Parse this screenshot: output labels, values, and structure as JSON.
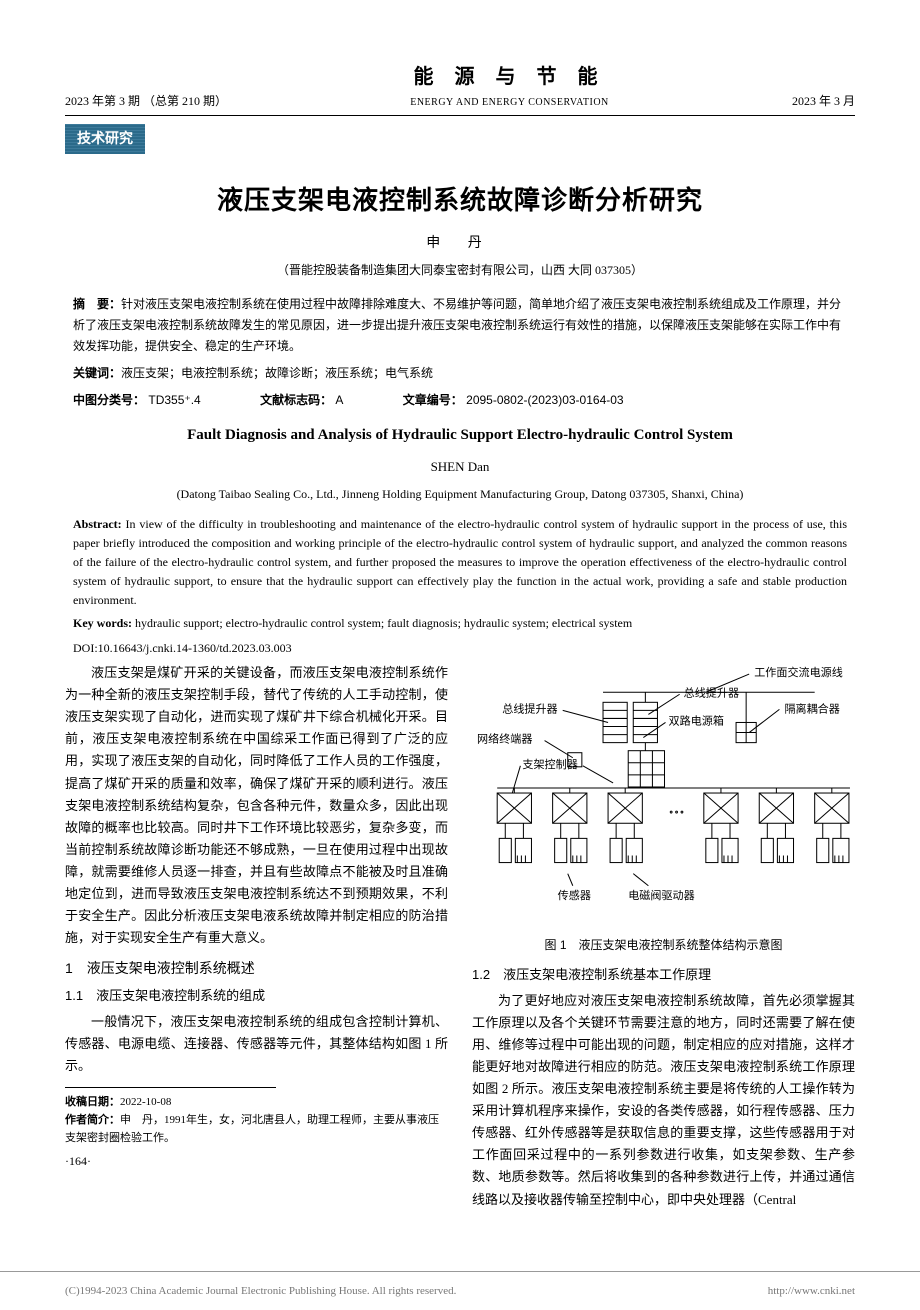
{
  "header": {
    "left": "2023 年第 3 期  （总第 210 期）",
    "right": "2023 年 3 月",
    "center_cn": "能 源 与 节 能",
    "center_en": "ENERGY AND ENERGY CONSERVATION"
  },
  "category": "技术研究",
  "title_cn": "液压支架电液控制系统故障诊断分析研究",
  "author_cn": "申  丹",
  "affiliation_cn": "（晋能控股装备制造集团大同泰宝密封有限公司，山西  大同  037305）",
  "abstract_cn_label": "摘　要：",
  "abstract_cn": "针对液压支架电液控制系统在使用过程中故障排除难度大、不易维护等问题，简单地介绍了液压支架电液控制系统组成及工作原理，并分析了液压支架电液控制系统故障发生的常见原因，进一步提出提升液压支架电液控制系统运行有效性的措施，以保障液压支架能够在实际工作中有效发挥功能，提供安全、稳定的生产环境。",
  "keywords_label": "关键词：",
  "keywords_cn": "液压支架；电液控制系统；故障诊断；液压系统；电气系统",
  "class_no_label": "中图分类号：",
  "class_no": "TD355⁺.4",
  "doc_code_label": "文献标志码：",
  "doc_code": "A",
  "article_no_label": "文章编号：",
  "article_no": "2095-0802-(2023)03-0164-03",
  "title_en": "Fault Diagnosis and Analysis of Hydraulic Support Electro-hydraulic Control System",
  "author_en": "SHEN Dan",
  "affiliation_en": "(Datong Taibao Sealing Co., Ltd., Jinneng Holding Equipment Manufacturing Group, Datong 037305, Shanxi, China)",
  "abstract_en_label": "Abstract:",
  "abstract_en": " In view of the difficulty in troubleshooting and maintenance of the electro-hydraulic control system of hydraulic support in the process of use, this paper briefly introduced the composition and working principle of the electro-hydraulic control system of hydraulic support, and analyzed the common reasons of the failure of the electro-hydraulic control system, and further proposed the measures to improve the operation effectiveness of the electro-hydraulic control system of hydraulic support, to ensure that the hydraulic support can effectively play the function in the actual work, providing a safe and stable production environment.",
  "keywords_en_label": "Key words:",
  "keywords_en": " hydraulic support; electro-hydraulic control system; fault diagnosis; hydraulic system; electrical system",
  "doi_label": "DOI:",
  "doi": "10.16643/j.cnki.14-1360/td.2023.03.003",
  "intro_para": "液压支架是煤矿开采的关键设备，而液压支架电液控制系统作为一种全新的液压支架控制手段，替代了传统的人工手动控制，使液压支架实现了自动化，进而实现了煤矿井下综合机械化开采。目前，液压支架电液控制系统在中国综采工作面已得到了广泛的应用，实现了液压支架的自动化，同时降低了工作人员的工作强度，提高了煤矿开采的质量和效率，确保了煤矿开采的顺利进行。液压支架电液控制系统结构复杂，包含各种元件，数量众多，因此出现故障的概率也比较高。同时井下工作环境比较恶劣，复杂多变，而当前控制系统故障诊断功能还不够成熟，一旦在使用过程中出现故障，就需要维修人员逐一排查，并且有些故障点不能被及时且准确地定位到，进而导致液压支架电液控制系统达不到预期效果，不利于安全生产。因此分析液压支架电液系统故障并制定相应的防治措施，对于实现安全生产有重大意义。",
  "sec1": "1　液压支架电液控制系统概述",
  "sec1_1": "1.1　液压支架电液控制系统的组成",
  "sec1_1_para": "一般情况下，液压支架电液控制系统的组成包含控制计算机、传感器、电源电缆、连接器、传感器等元件，其整体结构如图 1 所示。",
  "sec1_2": "1.2　液压支架电液控制系统基本工作原理",
  "sec1_2_para": "为了更好地应对液压支架电液控制系统故障，首先必须掌握其工作原理以及各个关键环节需要注意的地方，同时还需要了解在使用、维修等过程中可能出现的问题，制定相应的应对措施，这样才能更好地对故障进行相应的防范。液压支架电液控制系统工作原理如图 2 所示。液压支架电液控制系统主要是将传统的人工操作转为采用计算机程序来操作，安设的各类传感器，如行程传感器、压力传感器、红外传感器等是获取信息的重要支撑，这些传感器用于对工作面回采过程中的一系列参数进行收集，如支架参数、生产参数、地质参数等。然后将收集到的各种参数进行上传，并通过通信线路以及接收器传输至控制中心，即中央处理器（Central",
  "received_label": "收稿日期：",
  "received": "2022-10-08",
  "author_bio_label": "作者简介：",
  "author_bio": "申　丹，1991年生，女，河北唐县人，助理工程师，主要从事液压支架密封圈检验工作。",
  "page_num": "·164·",
  "figure1": {
    "caption": "图 1　液压支架电液控制系统整体结构示意图",
    "labels": {
      "powerline": "工作面交流电源线",
      "bus_lifter": "总线提升器",
      "coupler": "隔离耦合器",
      "dual_power": "双路电源箱",
      "net_terminal": "网络终端器",
      "controller": "支架控制器",
      "sensor": "传感器",
      "driver": "电磁阀驱动器"
    }
  },
  "footer": {
    "left": "(C)1994-2023 China Academic Journal Electronic Publishing House. All rights reserved.",
    "right": "http://www.cnki.net"
  }
}
